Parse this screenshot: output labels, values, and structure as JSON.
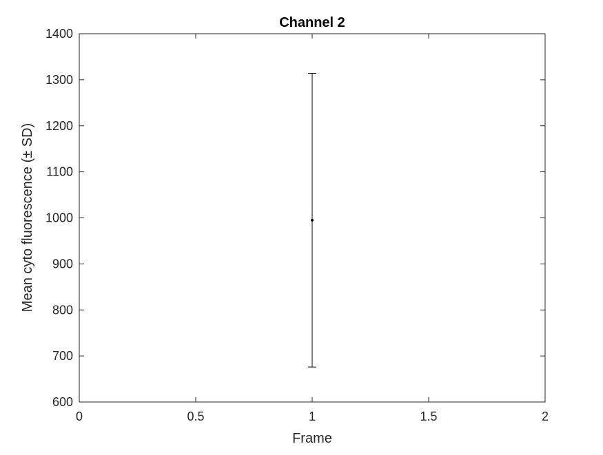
{
  "chart_data": {
    "type": "scatter",
    "title": "Channel 2",
    "xlabel": "Frame",
    "ylabel": "Mean cyto fluorescence (± SD)",
    "xlim": [
      0,
      2
    ],
    "ylim": [
      600,
      1400
    ],
    "xticks": [
      0,
      0.5,
      1,
      1.5,
      2
    ],
    "xtick_labels": [
      "0",
      "0.5",
      "1",
      "1.5",
      "2"
    ],
    "yticks": [
      600,
      700,
      800,
      900,
      1000,
      1100,
      1200,
      1300,
      1400
    ],
    "ytick_labels": [
      "600",
      "700",
      "800",
      "900",
      "1000",
      "1100",
      "1200",
      "1300",
      "1400"
    ],
    "grid": false,
    "series": [
      {
        "points": [
          {
            "x": 1,
            "y": 995,
            "error_low": 676,
            "error_high": 1314
          }
        ]
      }
    ],
    "colors": {
      "marker": "#000000",
      "errorbar": "#000000",
      "axes": "#262626"
    }
  }
}
